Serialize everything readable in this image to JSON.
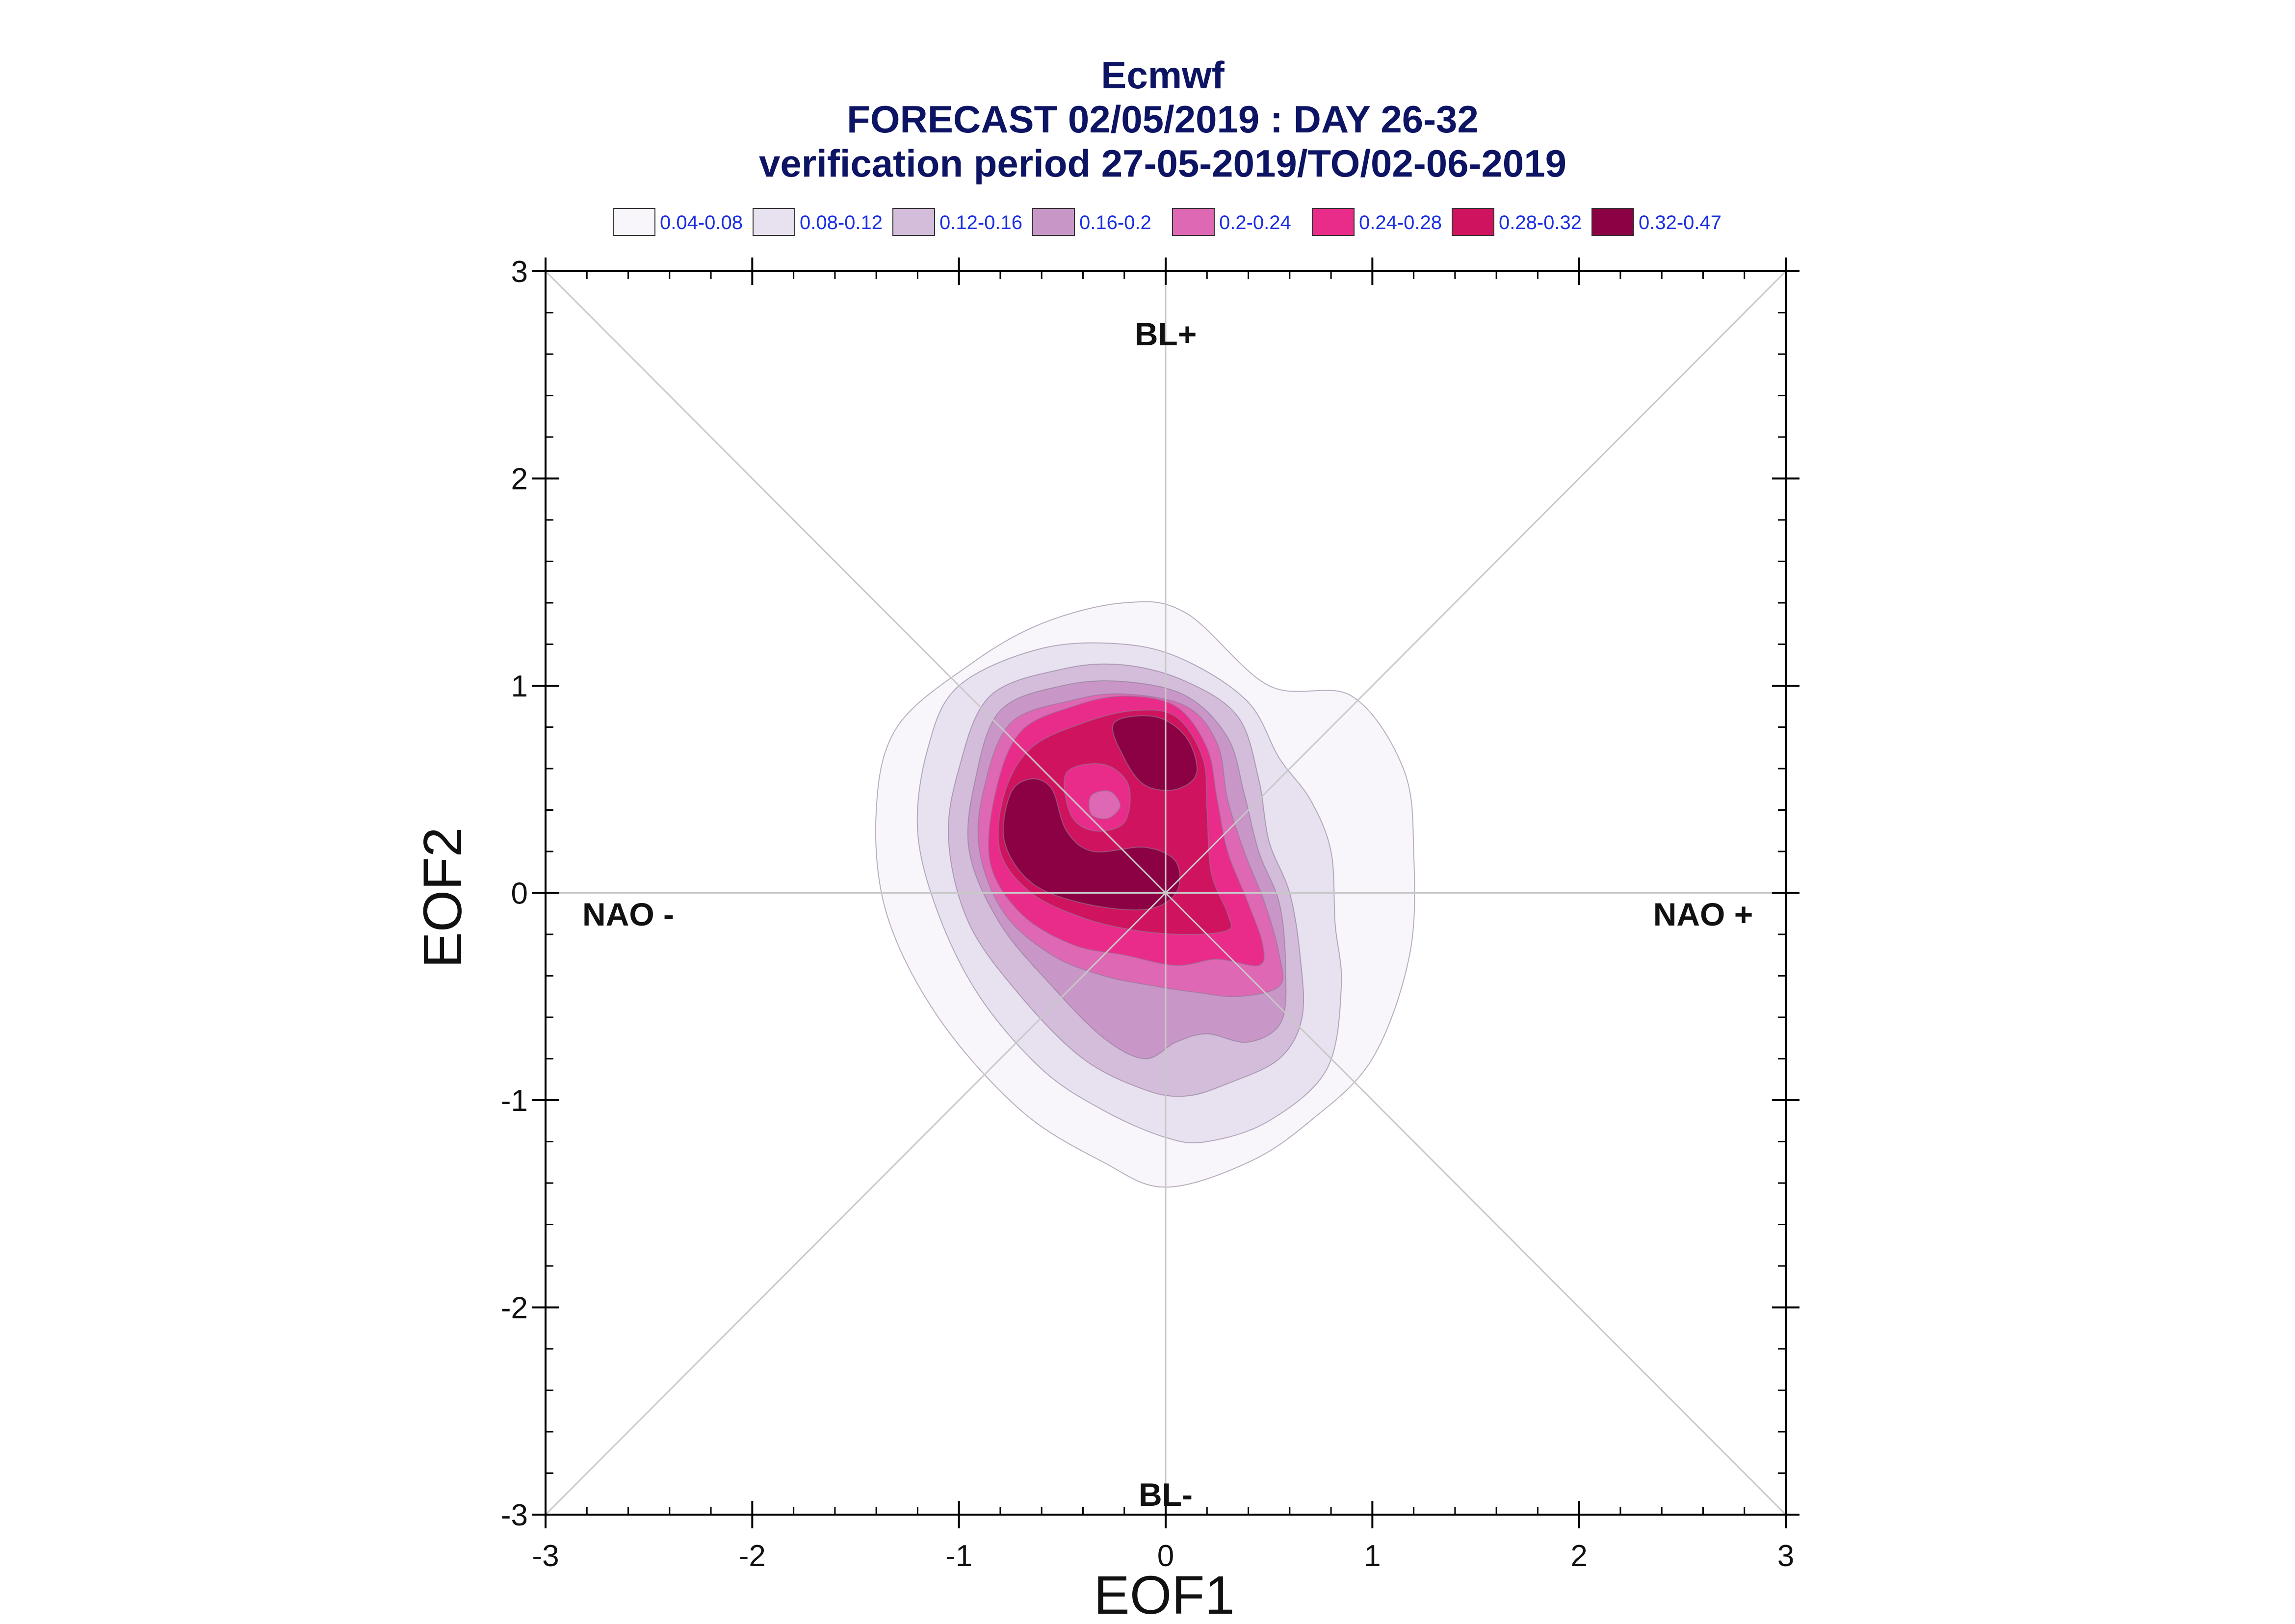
{
  "chart_data": {
    "type": "contour",
    "title": [
      "Ecmwf",
      "FORECAST 02/05/2019 : DAY 26-32",
      "verification period 27-05-2019/TO/02-06-2019"
    ],
    "xlabel": "EOF1",
    "ylabel": "EOF2",
    "xlim": [
      -3,
      3
    ],
    "ylim": [
      -3,
      3
    ],
    "xticks": [
      "-3",
      "-2",
      "-1",
      "0",
      "1",
      "2",
      "3"
    ],
    "yticks": [
      "-3",
      "-2",
      "-1",
      "0",
      "1",
      "2",
      "3"
    ],
    "grid": false,
    "legend_position": "top",
    "levels": [
      {
        "label": "0.04-0.08",
        "color": "#f8f5fb"
      },
      {
        "label": "0.08-0.12",
        "color": "#e8e1f0"
      },
      {
        "label": "0.12-0.16",
        "color": "#d4bcdb"
      },
      {
        "label": "0.16-0.2",
        "color": "#c897c8"
      },
      {
        "label": "0.2-0.24",
        "color": "#df68b4"
      },
      {
        "label": "0.24-0.28",
        "color": "#e92c8a"
      },
      {
        "label": "0.28-0.32",
        "color": "#d0135f"
      },
      {
        "label": "0.32-0.47",
        "color": "#8c0044"
      }
    ],
    "annotations": [
      {
        "text": "BL+",
        "x": 0.0,
        "y": 2.7
      },
      {
        "text": "BL-",
        "x": 0.0,
        "y": -2.9
      },
      {
        "text": "NAO -",
        "x": -2.6,
        "y": -0.1
      },
      {
        "text": "NAO +",
        "x": 2.6,
        "y": -0.1
      }
    ],
    "contours": [
      {
        "level": 0,
        "points": [
          [
            -0.95,
            1.1
          ],
          [
            -0.6,
            1.3
          ],
          [
            -0.2,
            1.4
          ],
          [
            0.1,
            1.35
          ],
          [
            0.5,
            1.0
          ],
          [
            0.9,
            0.95
          ],
          [
            1.15,
            0.6
          ],
          [
            1.2,
            0.2
          ],
          [
            1.18,
            -0.3
          ],
          [
            1.0,
            -0.8
          ],
          [
            0.7,
            -1.1
          ],
          [
            0.4,
            -1.3
          ],
          [
            0.0,
            -1.42
          ],
          [
            -0.3,
            -1.3
          ],
          [
            -0.7,
            -1.05
          ],
          [
            -1.1,
            -0.6
          ],
          [
            -1.35,
            -0.1
          ],
          [
            -1.4,
            0.4
          ],
          [
            -1.3,
            0.8
          ]
        ]
      },
      {
        "level": 1,
        "points": [
          [
            -1.0,
            1.0
          ],
          [
            -0.6,
            1.18
          ],
          [
            -0.2,
            1.2
          ],
          [
            0.1,
            1.12
          ],
          [
            0.4,
            0.92
          ],
          [
            0.55,
            0.65
          ],
          [
            0.7,
            0.45
          ],
          [
            0.8,
            0.2
          ],
          [
            0.82,
            -0.15
          ],
          [
            0.85,
            -0.45
          ],
          [
            0.78,
            -0.85
          ],
          [
            0.5,
            -1.1
          ],
          [
            0.2,
            -1.2
          ],
          [
            0.0,
            -1.18
          ],
          [
            -0.3,
            -1.05
          ],
          [
            -0.6,
            -0.85
          ],
          [
            -0.9,
            -0.5
          ],
          [
            -1.1,
            -0.1
          ],
          [
            -1.2,
            0.3
          ],
          [
            -1.15,
            0.7
          ]
        ]
      },
      {
        "level": 2,
        "points": [
          [
            -0.85,
            0.95
          ],
          [
            -0.5,
            1.08
          ],
          [
            -0.2,
            1.1
          ],
          [
            0.1,
            1.02
          ],
          [
            0.35,
            0.85
          ],
          [
            0.45,
            0.55
          ],
          [
            0.5,
            0.25
          ],
          [
            0.6,
            0.0
          ],
          [
            0.65,
            -0.3
          ],
          [
            0.66,
            -0.6
          ],
          [
            0.55,
            -0.8
          ],
          [
            0.3,
            -0.92
          ],
          [
            0.1,
            -0.98
          ],
          [
            -0.1,
            -0.95
          ],
          [
            -0.4,
            -0.8
          ],
          [
            -0.7,
            -0.5
          ],
          [
            -0.95,
            -0.15
          ],
          [
            -1.05,
            0.25
          ],
          [
            -1.0,
            0.6
          ]
        ]
      },
      {
        "level": 3,
        "points": [
          [
            -0.8,
            0.88
          ],
          [
            -0.5,
            1.0
          ],
          [
            -0.2,
            1.02
          ],
          [
            0.1,
            0.95
          ],
          [
            0.3,
            0.75
          ],
          [
            0.38,
            0.48
          ],
          [
            0.45,
            0.2
          ],
          [
            0.55,
            -0.05
          ],
          [
            0.58,
            -0.35
          ],
          [
            0.56,
            -0.62
          ],
          [
            0.4,
            -0.72
          ],
          [
            0.2,
            -0.68
          ],
          [
            0.05,
            -0.72
          ],
          [
            -0.1,
            -0.8
          ],
          [
            -0.3,
            -0.7
          ],
          [
            -0.55,
            -0.45
          ],
          [
            -0.8,
            -0.15
          ],
          [
            -0.95,
            0.2
          ],
          [
            -0.92,
            0.55
          ]
        ]
      },
      {
        "level": 4,
        "points": [
          [
            -0.75,
            0.82
          ],
          [
            -0.45,
            0.93
          ],
          [
            -0.2,
            0.96
          ],
          [
            0.1,
            0.9
          ],
          [
            0.25,
            0.72
          ],
          [
            0.3,
            0.45
          ],
          [
            0.38,
            0.2
          ],
          [
            0.48,
            -0.05
          ],
          [
            0.55,
            -0.3
          ],
          [
            0.55,
            -0.45
          ],
          [
            0.35,
            -0.5
          ],
          [
            0.15,
            -0.48
          ],
          [
            -0.05,
            -0.45
          ],
          [
            -0.3,
            -0.4
          ],
          [
            -0.55,
            -0.3
          ],
          [
            -0.78,
            -0.1
          ],
          [
            -0.9,
            0.2
          ],
          [
            -0.88,
            0.5
          ]
        ]
      },
      {
        "level": 5,
        "points": [
          [
            -0.7,
            0.78
          ],
          [
            -0.45,
            0.9
          ],
          [
            -0.2,
            0.95
          ],
          [
            0.05,
            0.9
          ],
          [
            0.2,
            0.7
          ],
          [
            0.25,
            0.45
          ],
          [
            0.3,
            0.2
          ],
          [
            0.4,
            -0.05
          ],
          [
            0.47,
            -0.25
          ],
          [
            0.45,
            -0.35
          ],
          [
            0.25,
            -0.32
          ],
          [
            0.05,
            -0.35
          ],
          [
            -0.2,
            -0.3
          ],
          [
            -0.45,
            -0.25
          ],
          [
            -0.7,
            -0.1
          ],
          [
            -0.85,
            0.15
          ],
          [
            -0.82,
            0.5
          ]
        ]
      },
      {
        "level": 6,
        "points": [
          [
            -0.65,
            0.7
          ],
          [
            -0.4,
            0.82
          ],
          [
            -0.15,
            0.88
          ],
          [
            0.05,
            0.85
          ],
          [
            0.18,
            0.65
          ],
          [
            0.2,
            0.4
          ],
          [
            0.22,
            0.1
          ],
          [
            0.3,
            -0.1
          ],
          [
            0.3,
            -0.18
          ],
          [
            0.1,
            -0.2
          ],
          [
            -0.15,
            -0.18
          ],
          [
            -0.4,
            -0.12
          ],
          [
            -0.65,
            0.0
          ],
          [
            -0.8,
            0.2
          ],
          [
            -0.78,
            0.48
          ]
        ]
      },
      {
        "level": 7,
        "points": [
          [
            -0.25,
            0.82
          ],
          [
            -0.05,
            0.85
          ],
          [
            0.1,
            0.75
          ],
          [
            0.15,
            0.58
          ],
          [
            0.05,
            0.5
          ],
          [
            -0.1,
            0.52
          ],
          [
            -0.2,
            0.65
          ]
        ]
      },
      {
        "level": 7,
        "points": [
          [
            -0.75,
            0.48
          ],
          [
            -0.65,
            0.55
          ],
          [
            -0.55,
            0.5
          ],
          [
            -0.48,
            0.3
          ],
          [
            -0.35,
            0.2
          ],
          [
            -0.1,
            0.22
          ],
          [
            0.05,
            0.15
          ],
          [
            0.05,
            0.0
          ],
          [
            -0.1,
            -0.08
          ],
          [
            -0.4,
            -0.05
          ],
          [
            -0.65,
            0.05
          ],
          [
            -0.78,
            0.25
          ]
        ]
      },
      {
        "level": 5,
        "points": [
          [
            -0.48,
            0.58
          ],
          [
            -0.3,
            0.62
          ],
          [
            -0.18,
            0.52
          ],
          [
            -0.2,
            0.34
          ],
          [
            -0.35,
            0.3
          ],
          [
            -0.46,
            0.38
          ]
        ]
      },
      {
        "level": 4,
        "points": [
          [
            -0.36,
            0.47
          ],
          [
            -0.27,
            0.49
          ],
          [
            -0.22,
            0.42
          ],
          [
            -0.28,
            0.36
          ],
          [
            -0.36,
            0.38
          ]
        ]
      }
    ]
  }
}
